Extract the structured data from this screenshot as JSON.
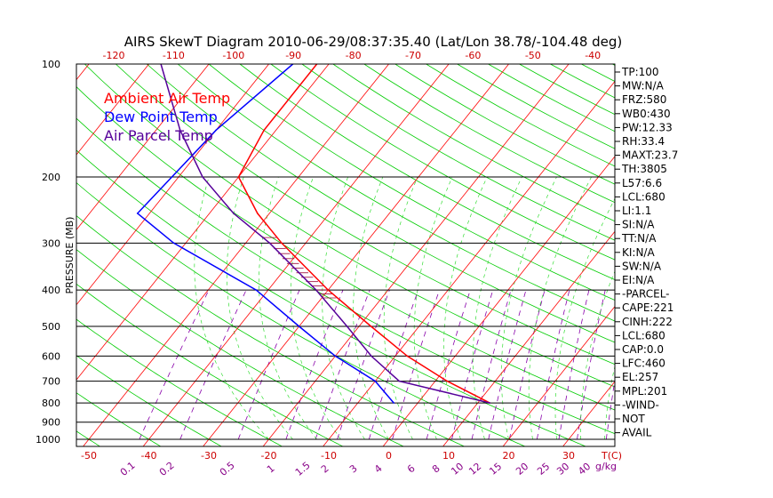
{
  "chart_data": {
    "type": "line",
    "title": "AIRS SkewT Diagram 2010-06-29/08:37:35.40 (Lat/Lon 38.78/-104.48 deg)",
    "ylabel": "PRESSURE (MB)",
    "x_unit_label": "T(C)",
    "mixing_unit_label": "g/kg",
    "pressure_ticks": [
      100,
      200,
      300,
      400,
      500,
      600,
      700,
      800,
      900,
      1000
    ],
    "bottom_temp_ticks": [
      "-50",
      "-40",
      "-30",
      "-20",
      "-10",
      "0",
      "10",
      "20",
      "30"
    ],
    "top_temp_ticks": [
      "-120",
      "-110",
      "-100",
      "-90",
      "-80",
      "-70",
      "-60",
      "-50",
      "-40"
    ],
    "mixing_ratio_ticks": [
      "0.1",
      "0.2",
      "0.5",
      "1",
      "1.5",
      "2",
      "3",
      "4",
      "6",
      "8",
      "10",
      "12",
      "15",
      "20",
      "25",
      "30",
      "40"
    ],
    "legend": [
      {
        "name": "Ambient Air Temp",
        "color": "#ff0000"
      },
      {
        "name": "Dew Point Temp",
        "color": "#0000ff"
      },
      {
        "name": "Air Parcel Temp",
        "color": "#550099"
      }
    ],
    "series": [
      {
        "name": "Ambient Air Temp",
        "color": "#ff0000",
        "points": [
          [
            100,
            -62
          ],
          [
            150,
            -62
          ],
          [
            200,
            -60
          ],
          [
            250,
            -52
          ],
          [
            300,
            -44
          ],
          [
            400,
            -30
          ],
          [
            500,
            -18
          ],
          [
            600,
            -8
          ],
          [
            700,
            2
          ],
          [
            800,
            12
          ]
        ]
      },
      {
        "name": "Dew Point Temp",
        "color": "#0000ff",
        "points": [
          [
            100,
            -66
          ],
          [
            150,
            -70
          ],
          [
            250,
            -72
          ],
          [
            300,
            -62
          ],
          [
            400,
            -42
          ],
          [
            500,
            -30
          ],
          [
            600,
            -20
          ],
          [
            700,
            -10
          ],
          [
            800,
            -4
          ]
        ]
      },
      {
        "name": "Air Parcel Temp",
        "color": "#550099",
        "points": [
          [
            100,
            -88
          ],
          [
            150,
            -76
          ],
          [
            200,
            -66
          ],
          [
            250,
            -56
          ],
          [
            300,
            -46
          ],
          [
            400,
            -32
          ],
          [
            500,
            -22
          ],
          [
            600,
            -14
          ],
          [
            700,
            -6
          ],
          [
            800,
            12
          ]
        ]
      }
    ]
  },
  "indices": [
    "TP:100",
    "MW:N/A",
    "FRZ:580",
    "WB0:430",
    "PW:12.33",
    "RH:33.4",
    "MAXT:23.7",
    "TH:3805",
    "L57:6.6",
    "LCL:680",
    "LI:1.1",
    "SI:N/A",
    "TT:N/A",
    "KI:N/A",
    "SW:N/A",
    "EI:N/A",
    "-PARCEL-",
    "CAPE:221",
    "CINH:222",
    "LCL:680",
    "CAP:0.0",
    "LFC:460",
    "EL:257",
    "MPL:201",
    "-WIND-",
    "NOT",
    "AVAIL"
  ],
  "colors": {
    "isotherm": "#ff0000",
    "dry_adiabat": "#00cc00",
    "mixing_ratio": "#8800aa",
    "tick_label_temp": "#cc0000",
    "tick_label_mix": "#880088"
  }
}
